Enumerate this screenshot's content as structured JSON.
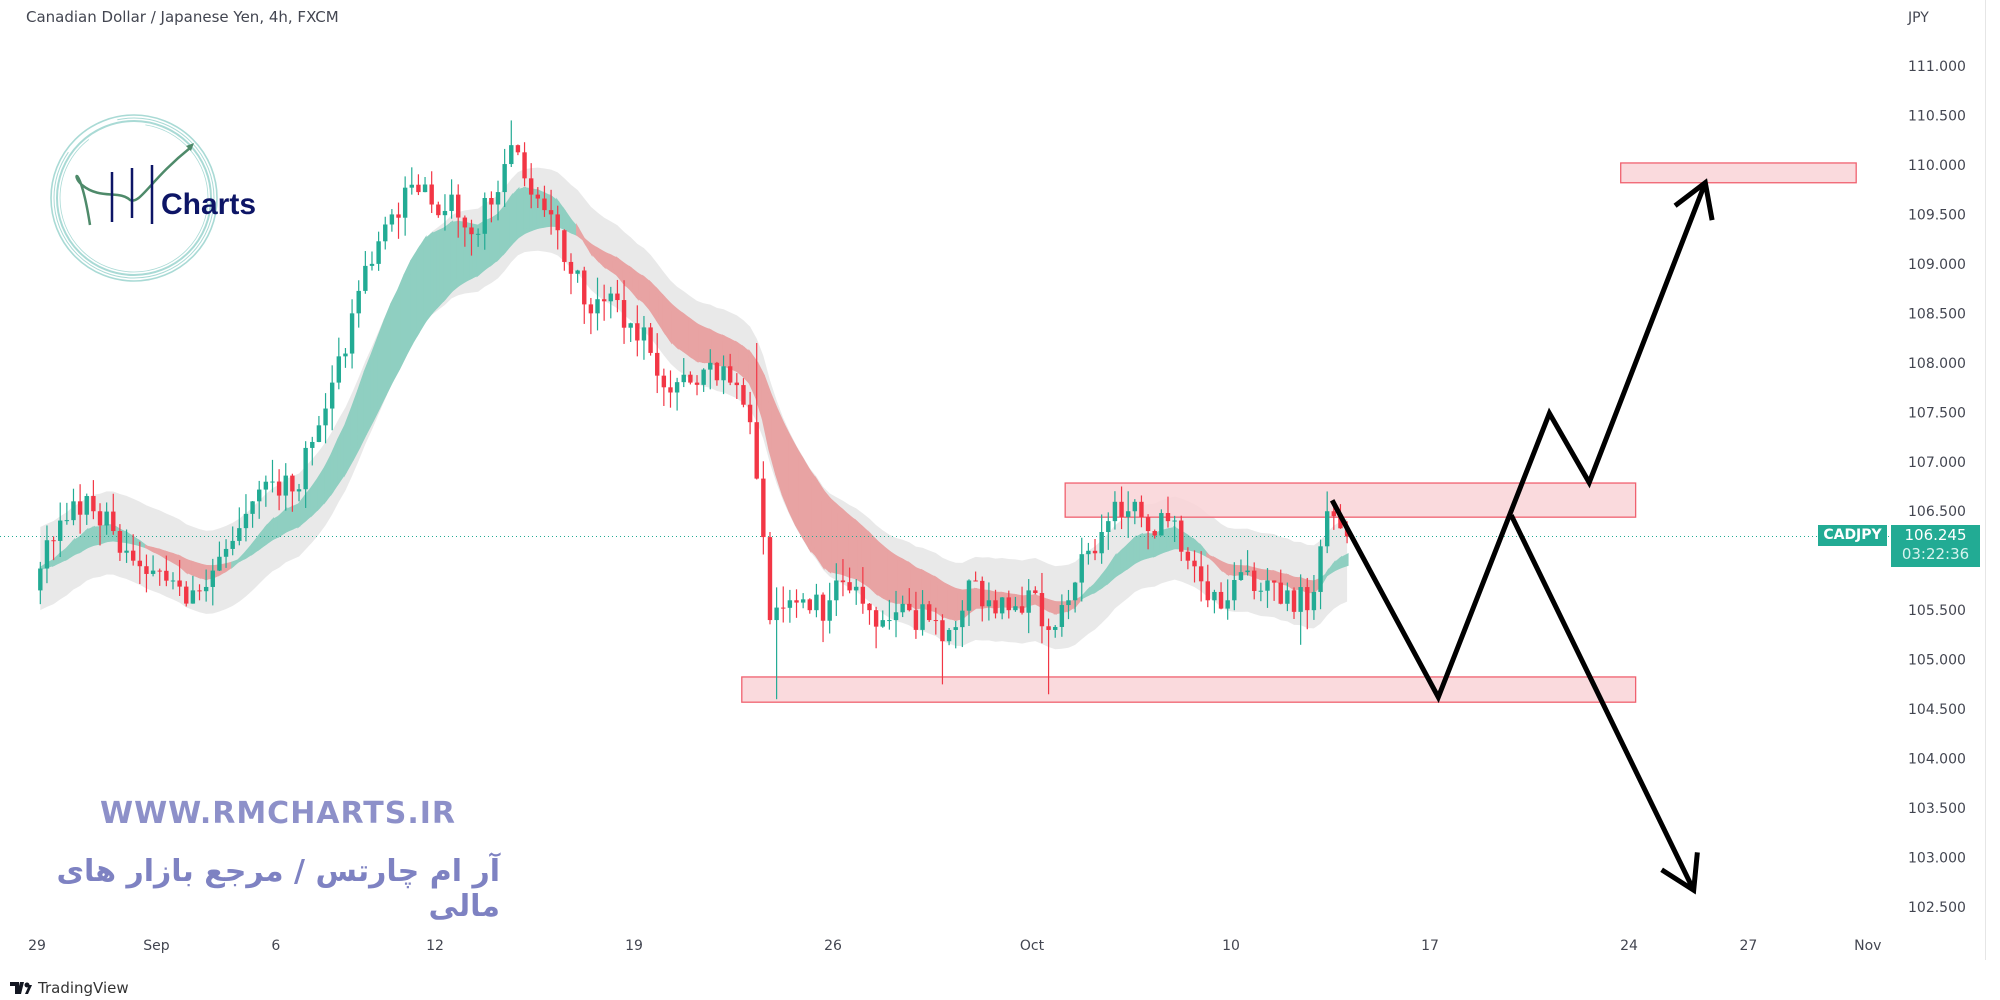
{
  "header": {
    "title": "Canadian Dollar / Japanese Yen, 4h, FXCM"
  },
  "watermark": {
    "logo_text": "RM Charts",
    "logo_word": "Charts",
    "website": "WWW.RMCHARTS.IR",
    "tagline": "آر ام چارتس / مرجع بازار های مالی"
  },
  "price_label": {
    "symbol": "CADJPY",
    "price": "106.245",
    "countdown": "03:22:36"
  },
  "footer": {
    "brand": "TradingView"
  },
  "colors": {
    "up": "#22ab94",
    "down": "#f23645",
    "zone_fill": "#f9d3d7",
    "zone_border": "#f0616f",
    "ribbon_up": "#8fcfc1",
    "ribbon_down": "#e8a3a3",
    "envelope": "#e3e3e3",
    "arrow": "#000000"
  },
  "chart_data": {
    "type": "candlestick",
    "title": "Canadian Dollar / Japanese Yen, 4h, FXCM",
    "currency_label": "JPY",
    "ylim": [
      102.3,
      111.3
    ],
    "yticks": [
      102.5,
      103,
      103.5,
      104,
      104.5,
      105,
      105.5,
      106,
      106.5,
      107,
      107.5,
      108,
      108.5,
      109,
      109.5,
      110,
      110.5,
      111
    ],
    "xticks": [
      {
        "label": "29",
        "date": "2022-08-29"
      },
      {
        "label": "Sep",
        "date": "2022-09-01"
      },
      {
        "label": "6",
        "date": "2022-09-06"
      },
      {
        "label": "12",
        "date": "2022-09-12"
      },
      {
        "label": "19",
        "date": "2022-09-19"
      },
      {
        "label": "26",
        "date": "2022-09-26"
      },
      {
        "label": "Oct",
        "date": "2022-10-03"
      },
      {
        "label": "10",
        "date": "2022-10-10"
      },
      {
        "label": "17",
        "date": "2022-10-17"
      },
      {
        "label": "24",
        "date": "2022-10-24"
      },
      {
        "label": "27",
        "date": "2022-10-27"
      },
      {
        "label": "Nov",
        "date": "2022-11-01"
      }
    ],
    "open_start": 105.7,
    "sessions": [
      {
        "date": "2022-08-29",
        "closes": [
          106.2,
          106.6
        ]
      },
      {
        "date": "2022-08-30",
        "closes": [
          106.5,
          106.3
        ]
      },
      {
        "date": "2022-08-31",
        "closes": [
          106.0,
          105.9
        ]
      },
      {
        "date": "2022-09-01",
        "closes": [
          105.8,
          105.7
        ]
      },
      {
        "date": "2022-09-02",
        "closes": [
          105.9,
          106.2
        ]
      },
      {
        "date": "2022-09-05",
        "closes": [
          106.6,
          106.8
        ]
      },
      {
        "date": "2022-09-06",
        "closes": [
          106.7,
          107.2
        ]
      },
      {
        "date": "2022-09-07",
        "closes": [
          107.8,
          108.5
        ]
      },
      {
        "date": "2022-09-08",
        "closes": [
          109.0,
          109.5
        ]
      },
      {
        "date": "2022-09-09",
        "closes": [
          109.8,
          109.6
        ]
      },
      {
        "date": "2022-09-12",
        "closes": [
          109.7,
          109.3
        ]
      },
      {
        "date": "2022-09-13",
        "closes": [
          109.6,
          110.2
        ],
        "high": 110.45
      },
      {
        "date": "2022-09-14",
        "closes": [
          109.7,
          109.5
        ]
      },
      {
        "date": "2022-09-15",
        "closes": [
          108.9,
          108.5
        ]
      },
      {
        "date": "2022-09-16",
        "closes": [
          108.7,
          108.4
        ]
      },
      {
        "date": "2022-09-19",
        "closes": [
          108.1,
          107.7
        ]
      },
      {
        "date": "2022-09-20",
        "closes": [
          107.8,
          108.0
        ]
      },
      {
        "date": "2022-09-21",
        "closes": [
          107.8,
          107.4
        ]
      },
      {
        "date": "2022-09-22",
        "closes": [
          105.4,
          105.6
        ],
        "high": 108.2,
        "low": 104.6
      },
      {
        "date": "2022-09-23",
        "closes": [
          105.5,
          105.6
        ]
      },
      {
        "date": "2022-09-26",
        "closes": [
          105.7,
          105.5
        ]
      },
      {
        "date": "2022-09-27",
        "closes": [
          105.4,
          105.5
        ]
      },
      {
        "date": "2022-09-28",
        "closes": [
          105.4,
          105.3
        ],
        "low": 104.75
      },
      {
        "date": "2022-09-29",
        "closes": [
          105.8,
          105.6
        ]
      },
      {
        "date": "2022-09-30",
        "closes": [
          105.5,
          105.7
        ]
      },
      {
        "date": "2022-10-03",
        "closes": [
          105.3,
          105.6
        ],
        "low": 104.65
      },
      {
        "date": "2022-10-04",
        "closes": [
          106.1,
          106.4
        ]
      },
      {
        "date": "2022-10-05",
        "closes": [
          106.5,
          106.3
        ],
        "high": 106.75
      },
      {
        "date": "2022-10-06",
        "closes": [
          106.4,
          106.0
        ]
      },
      {
        "date": "2022-10-07",
        "closes": [
          105.6,
          105.6
        ]
      },
      {
        "date": "2022-10-10",
        "closes": [
          105.9,
          105.8
        ]
      },
      {
        "date": "2022-10-11",
        "closes": [
          105.7,
          105.5
        ],
        "low": 105.15
      },
      {
        "date": "2022-10-12",
        "closes": [
          106.5,
          106.245
        ],
        "high": 106.7
      }
    ],
    "last_price": 106.245,
    "zones": [
      {
        "from": "2022-10-03 20:00",
        "to": "2022-10-24 04:00",
        "top": 106.785,
        "bottom": 106.44
      },
      {
        "from": "2022-09-21 17:00",
        "to": "2022-10-24 04:00",
        "top": 104.825,
        "bottom": 104.57
      },
      {
        "from": "2022-10-21 19:00",
        "to": "2022-10-31 17:00",
        "top": 110.02,
        "bottom": 109.82
      }
    ],
    "projection_up": [
      {
        "t": "2022-10-12 13:00",
        "p": 106.61
      },
      {
        "t": "2022-10-17 05:00",
        "p": 104.62
      },
      {
        "t": "2022-10-20 00:00",
        "p": 107.49
      },
      {
        "t": "2022-10-21 00:00",
        "p": 106.79
      },
      {
        "t": "2022-10-25 22:00",
        "p": 109.82
      }
    ],
    "projection_down": [
      {
        "t": "2022-10-19 01:00",
        "p": 106.46
      },
      {
        "t": "2022-10-25 15:00",
        "p": 102.67
      }
    ]
  }
}
